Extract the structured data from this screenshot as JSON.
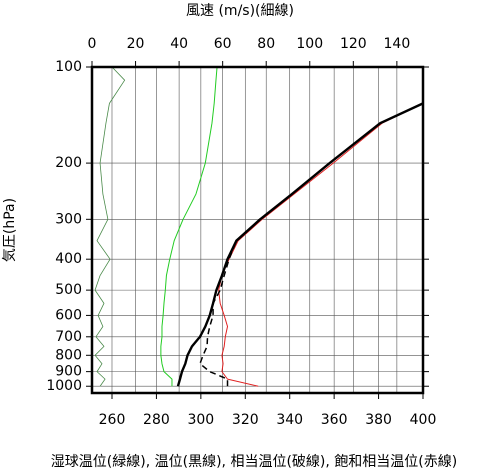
{
  "chart_data": {
    "type": "line",
    "x2_label": "風速 (m/s)(細線)",
    "y_label": "気圧(hPa)",
    "caption": "湿球温位(緑線), 温位(黒線), 相当温位(破線), 飽和相当温位(赤線)",
    "y": [
      1000,
      950,
      900,
      850,
      800,
      750,
      700,
      650,
      600,
      550,
      500,
      450,
      400,
      350,
      300,
      250,
      200,
      150,
      130,
      110,
      100
    ],
    "ylim": [
      1050,
      100
    ],
    "yscale": "log",
    "yticks": [
      100,
      200,
      300,
      400,
      500,
      600,
      700,
      800,
      900,
      1000
    ],
    "xlim": [
      251,
      400
    ],
    "xticks": [
      260,
      280,
      300,
      320,
      340,
      360,
      380,
      400
    ],
    "x2lim": [
      0,
      152
    ],
    "x2ticks": [
      0,
      20,
      40,
      60,
      80,
      100,
      120,
      140
    ],
    "grid": true,
    "series": [
      {
        "color": "#22cc22",
        "width": 1,
        "values": [
          287,
          287,
          283.4,
          282.5,
          282,
          282,
          282.5,
          282.5,
          283,
          283.4,
          284,
          284.5,
          286,
          288,
          292,
          297.8,
          302,
          305,
          306,
          306.8,
          307.3
        ]
      },
      {
        "color": "#e02020",
        "width": 1,
        "values": [
          325.8,
          312,
          309.5,
          310,
          309.5,
          310.5,
          311,
          312,
          310.5,
          308.7,
          308,
          309.5,
          312.7,
          316.8,
          327.6,
          342,
          359.6,
          381.6,
          400,
          null,
          null
        ]
      },
      {
        "color": "#000000",
        "width": 1.5,
        "style": "dashed",
        "values": [
          312,
          312,
          304,
          299.6,
          301,
          302.8,
          303,
          304,
          305.5,
          305.5,
          308.7,
          310.5,
          312.7,
          316,
          326.7,
          341,
          358,
          380.7,
          400,
          null,
          null
        ]
      },
      {
        "color": "#000000",
        "width": 2.4,
        "values": [
          289.7,
          290.6,
          291.5,
          293,
          294,
          296,
          299.6,
          302,
          304,
          305.5,
          307,
          309.5,
          312,
          316,
          326.7,
          341,
          358,
          380.7,
          400,
          null,
          null
        ]
      },
      {
        "color": "#4a8a4a",
        "width": 0.8,
        "axis": "x2",
        "values": [
          3.7,
          6,
          2.3,
          4.6,
          1.4,
          5.5,
          1.8,
          5,
          2.8,
          5.5,
          1.4,
          3.7,
          8.3,
          2.3,
          7.3,
          5,
          3.7,
          6.4,
          8,
          15,
          9.2
        ]
      }
    ]
  }
}
